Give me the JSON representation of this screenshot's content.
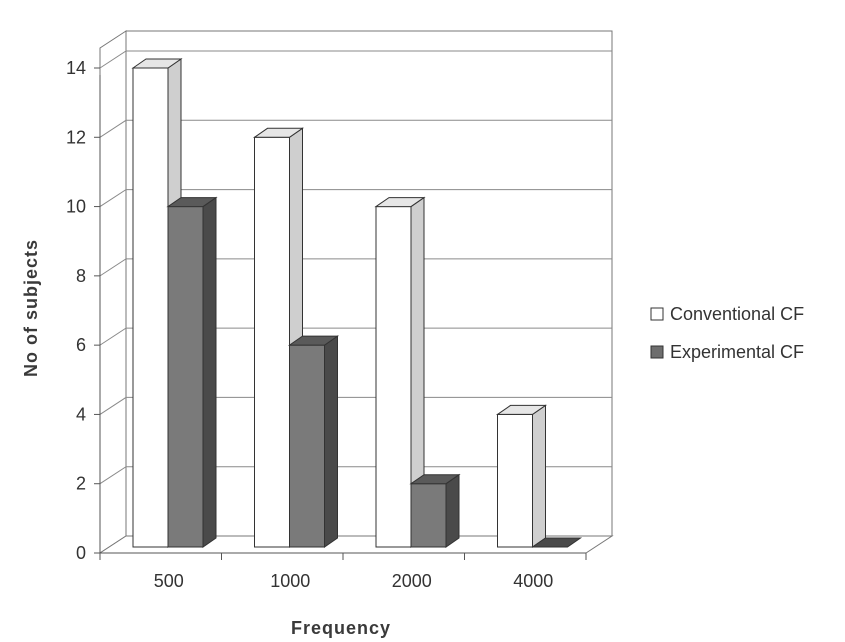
{
  "chart_data": {
    "type": "bar",
    "title": "",
    "xlabel": "Frequency",
    "ylabel": "No of subjects",
    "categories": [
      "500",
      "1000",
      "2000",
      "4000"
    ],
    "series": [
      {
        "name": "Conventional CF",
        "values": [
          14,
          12,
          10,
          4
        ],
        "color": "#ffffff"
      },
      {
        "name": "Experimental CF",
        "values": [
          10,
          6,
          2,
          0
        ],
        "color": "#7a7a7a"
      }
    ],
    "ylim": [
      0,
      14
    ],
    "yticks": [
      0,
      2,
      4,
      6,
      8,
      10,
      12,
      14
    ],
    "grid": true,
    "legend": "right",
    "style": "3d-bars"
  }
}
